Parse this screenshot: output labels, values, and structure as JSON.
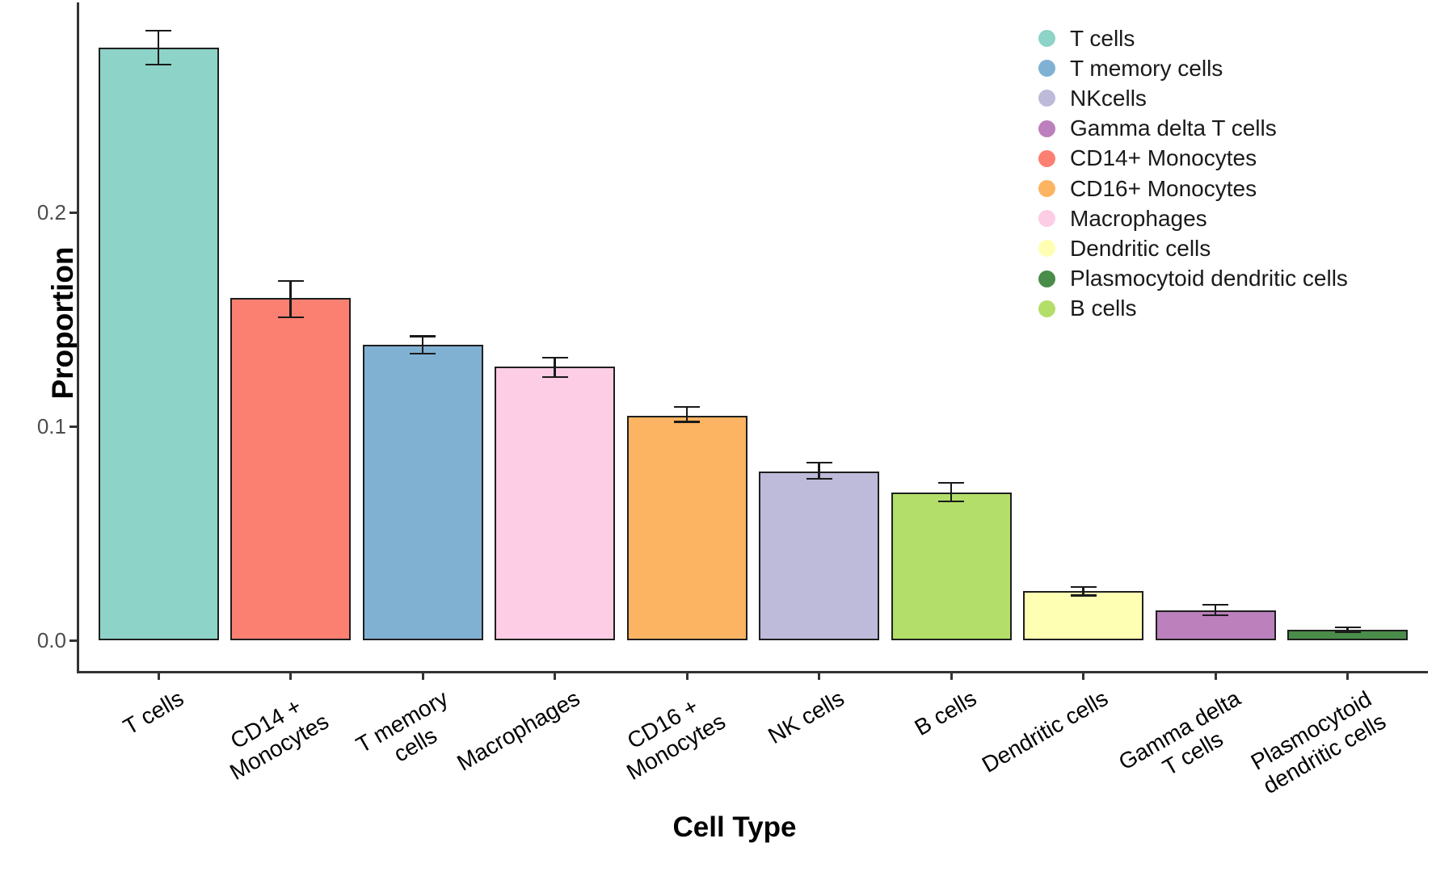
{
  "chart_data": {
    "type": "bar",
    "title": "",
    "xlabel": "Cell Type",
    "ylabel": "Proportion",
    "ylim": [
      0,
      0.3
    ],
    "grid": false,
    "legend_position": "top-right",
    "yticks": [
      {
        "value": 0.0,
        "label": "0.0"
      },
      {
        "value": 0.1,
        "label": "0.1"
      },
      {
        "value": 0.2,
        "label": "0.2"
      }
    ],
    "bars": [
      {
        "category": "T cells",
        "label_lines": [
          "T cells"
        ],
        "value": 0.277,
        "error_low": 0.269,
        "error_high": 0.285,
        "color": "#8DD3C7"
      },
      {
        "category": "CD14 + Monocytes",
        "label_lines": [
          "CD14 +",
          "Monocytes"
        ],
        "value": 0.16,
        "error_low": 0.151,
        "error_high": 0.168,
        "color": "#FB8072"
      },
      {
        "category": "T memory cells",
        "label_lines": [
          "T memory",
          "cells"
        ],
        "value": 0.138,
        "error_low": 0.134,
        "error_high": 0.142,
        "color": "#80B1D3"
      },
      {
        "category": "Macrophages",
        "label_lines": [
          "Macrophages"
        ],
        "value": 0.128,
        "error_low": 0.123,
        "error_high": 0.132,
        "color": "#FCCDE5"
      },
      {
        "category": "CD16 + Monocytes",
        "label_lines": [
          "CD16 +",
          "Monocytes"
        ],
        "value": 0.105,
        "error_low": 0.102,
        "error_high": 0.109,
        "color": "#FDB462"
      },
      {
        "category": "NK cells",
        "label_lines": [
          "NK cells"
        ],
        "value": 0.079,
        "error_low": 0.0755,
        "error_high": 0.083,
        "color": "#BEBADA"
      },
      {
        "category": "B cells",
        "label_lines": [
          "B cells"
        ],
        "value": 0.069,
        "error_low": 0.065,
        "error_high": 0.0735,
        "color": "#B3DE69"
      },
      {
        "category": "Dendritic cells",
        "label_lines": [
          "Dendritic cells"
        ],
        "value": 0.023,
        "error_low": 0.021,
        "error_high": 0.025,
        "color": "#FFFFB3"
      },
      {
        "category": "Gamma delta T cells",
        "label_lines": [
          "Gamma delta",
          "T cells"
        ],
        "value": 0.014,
        "error_low": 0.0117,
        "error_high": 0.0166,
        "color": "#BC80BD"
      },
      {
        "category": "Plasmocytoid dendritic cells",
        "label_lines": [
          "Plasmocytoid",
          "dendritic cells"
        ],
        "value": 0.005,
        "error_low": 0.0038,
        "error_high": 0.006,
        "color": "#4A8C4A"
      }
    ],
    "legend": [
      {
        "label": "T cells",
        "color": "#8DD3C7"
      },
      {
        "label": "T memory cells",
        "color": "#80B1D3"
      },
      {
        "label": "NKcells",
        "color": "#BEBADA"
      },
      {
        "label": "Gamma delta T cells",
        "color": "#BC80BD"
      },
      {
        "label": "CD14+ Monocytes",
        "color": "#FB8072"
      },
      {
        "label": "CD16+ Monocytes",
        "color": "#FDB462"
      },
      {
        "label": "Macrophages",
        "color": "#FCCDE5"
      },
      {
        "label": "Dendritic cells",
        "color": "#FFFFB3"
      },
      {
        "label": "Plasmocytoid dendritic cells",
        "color": "#4A8C4A"
      },
      {
        "label": "B cells",
        "color": "#B3DE69"
      }
    ]
  },
  "colors": {
    "background": "#ffffff",
    "axis_line": "#333333",
    "y_tick_label": "#4d4d4d",
    "axis_text": "#000000",
    "bar_border": "#1f1f1f",
    "errorbar": "#1a1a1a"
  }
}
